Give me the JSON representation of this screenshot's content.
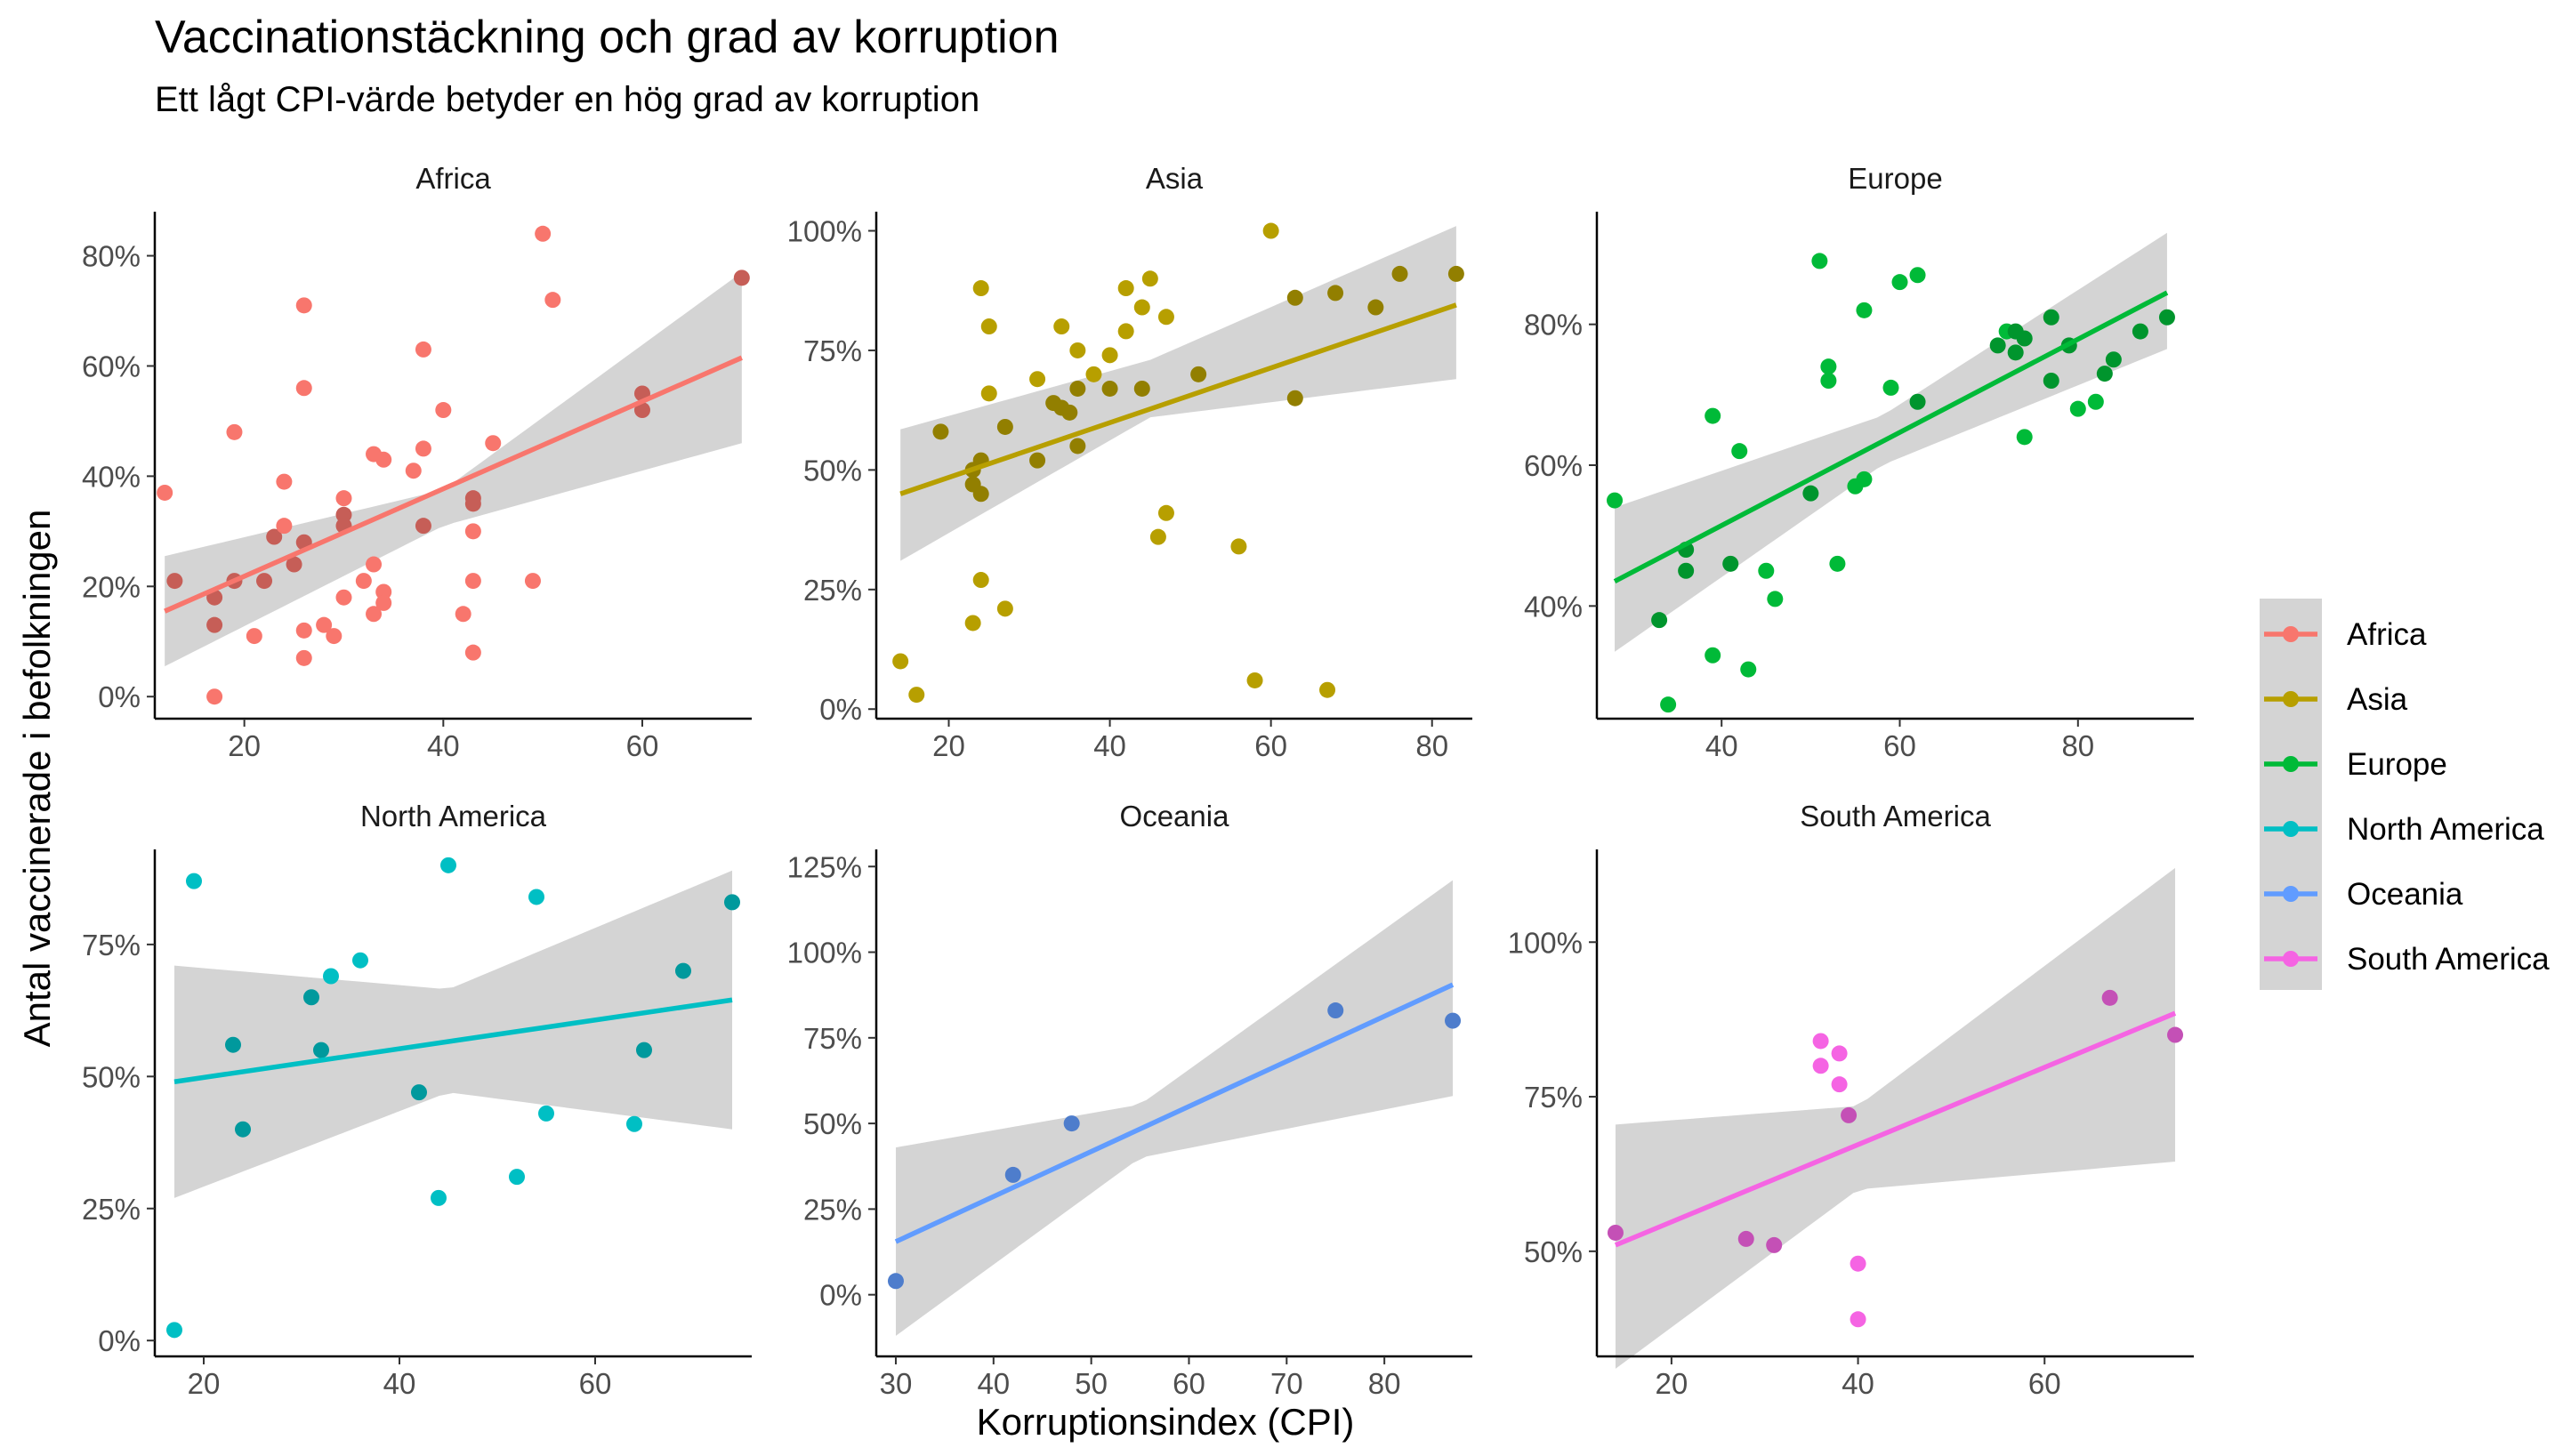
{
  "title": "Vaccinationstäckning och grad av korruption",
  "subtitle": "Ett lågt CPI-värde betyder en hög grad av korruption",
  "chart_data": {
    "type": "scatter",
    "xlabel": "Korruptionsindex (CPI)",
    "ylabel": "Antal vaccinerade i befolkningen",
    "legend_position": "right",
    "grid": false,
    "smoothing": "linear regression with grey confidence band",
    "legend": [
      {
        "name": "Africa",
        "color": "#F8766D"
      },
      {
        "name": "Asia",
        "color": "#B79F00"
      },
      {
        "name": "Europe",
        "color": "#00BA38"
      },
      {
        "name": "North America",
        "color": "#00BFC4"
      },
      {
        "name": "Oceania",
        "color": "#619CFF"
      },
      {
        "name": "South America",
        "color": "#F564E3"
      }
    ],
    "panels": [
      {
        "name": "Africa",
        "color": "#F8766D",
        "xlim": [
          11,
          71
        ],
        "ylim": [
          -0.04,
          0.88
        ],
        "xticks": [
          20,
          40,
          60
        ],
        "yticks": [
          0,
          0.2,
          0.4,
          0.6,
          0.8
        ],
        "ytick_labels": [
          "0%",
          "20%",
          "40%",
          "60%",
          "80%"
        ],
        "fit": {
          "x": [
            12,
            70
          ],
          "y": [
            0.155,
            0.615
          ]
        },
        "band": {
          "x": [
            12,
            40,
            70
          ],
          "lower": [
            0.055,
            0.31,
            0.46
          ],
          "upper": [
            0.255,
            0.375,
            0.77
          ]
        },
        "points": [
          [
            12,
            0.37
          ],
          [
            13,
            0.21
          ],
          [
            17,
            0.18
          ],
          [
            17,
            0.13
          ],
          [
            17,
            0.0
          ],
          [
            19,
            0.48
          ],
          [
            19,
            0.21
          ],
          [
            21,
            0.11
          ],
          [
            22,
            0.21
          ],
          [
            23,
            0.29
          ],
          [
            24,
            0.39
          ],
          [
            24,
            0.31
          ],
          [
            25,
            0.24
          ],
          [
            26,
            0.71
          ],
          [
            26,
            0.56
          ],
          [
            26,
            0.28
          ],
          [
            26,
            0.12
          ],
          [
            26,
            0.07
          ],
          [
            28,
            0.13
          ],
          [
            29,
            0.11
          ],
          [
            30,
            0.36
          ],
          [
            30,
            0.33
          ],
          [
            30,
            0.31
          ],
          [
            30,
            0.18
          ],
          [
            32,
            0.21
          ],
          [
            33,
            0.44
          ],
          [
            33,
            0.24
          ],
          [
            33,
            0.15
          ],
          [
            34,
            0.43
          ],
          [
            34,
            0.19
          ],
          [
            34,
            0.17
          ],
          [
            37,
            0.41
          ],
          [
            38,
            0.63
          ],
          [
            38,
            0.45
          ],
          [
            38,
            0.31
          ],
          [
            40,
            0.52
          ],
          [
            42,
            0.15
          ],
          [
            43,
            0.36
          ],
          [
            43,
            0.35
          ],
          [
            43,
            0.3
          ],
          [
            43,
            0.21
          ],
          [
            43,
            0.08
          ],
          [
            45,
            0.46
          ],
          [
            49,
            0.21
          ],
          [
            50,
            0.84
          ],
          [
            51,
            0.72
          ],
          [
            60,
            0.55
          ],
          [
            60,
            0.52
          ],
          [
            70,
            0.76
          ]
        ]
      },
      {
        "name": "Asia",
        "color": "#B79F00",
        "xlim": [
          11,
          85
        ],
        "ylim": [
          -0.02,
          1.04
        ],
        "xticks": [
          20,
          40,
          60,
          80
        ],
        "yticks": [
          0,
          0.25,
          0.5,
          0.75,
          1.0
        ],
        "ytick_labels": [
          "0%",
          "25%",
          "50%",
          "75%",
          "100%"
        ],
        "fit": {
          "x": [
            14,
            83
          ],
          "y": [
            0.45,
            0.845
          ]
        },
        "band": {
          "x": [
            14,
            45,
            83
          ],
          "lower": [
            0.31,
            0.61,
            0.69
          ],
          "upper": [
            0.585,
            0.73,
            1.01
          ]
        },
        "points": [
          [
            14,
            0.1
          ],
          [
            16,
            0.03
          ],
          [
            19,
            0.58
          ],
          [
            23,
            0.5
          ],
          [
            23,
            0.47
          ],
          [
            23,
            0.18
          ],
          [
            24,
            0.88
          ],
          [
            24,
            0.52
          ],
          [
            24,
            0.45
          ],
          [
            24,
            0.27
          ],
          [
            25,
            0.8
          ],
          [
            25,
            0.66
          ],
          [
            27,
            0.59
          ],
          [
            27,
            0.21
          ],
          [
            31,
            0.69
          ],
          [
            31,
            0.52
          ],
          [
            33,
            0.64
          ],
          [
            34,
            0.8
          ],
          [
            34,
            0.63
          ],
          [
            35,
            0.62
          ],
          [
            36,
            0.75
          ],
          [
            36,
            0.67
          ],
          [
            36,
            0.55
          ],
          [
            38,
            0.7
          ],
          [
            40,
            0.74
          ],
          [
            40,
            0.67
          ],
          [
            42,
            0.88
          ],
          [
            42,
            0.79
          ],
          [
            44,
            0.84
          ],
          [
            44,
            0.67
          ],
          [
            45,
            0.9
          ],
          [
            46,
            0.36
          ],
          [
            47,
            0.82
          ],
          [
            47,
            0.41
          ],
          [
            51,
            0.7
          ],
          [
            56,
            0.34
          ],
          [
            58,
            0.06
          ],
          [
            60,
            1.0
          ],
          [
            63,
            0.86
          ],
          [
            63,
            0.65
          ],
          [
            67,
            0.04
          ],
          [
            68,
            0.87
          ],
          [
            73,
            0.84
          ],
          [
            76,
            0.91
          ],
          [
            83,
            0.91
          ]
        ]
      },
      {
        "name": "Europe",
        "color": "#00BA38",
        "xlim": [
          26,
          93
        ],
        "ylim": [
          0.24,
          0.96
        ],
        "xticks": [
          40,
          60,
          80
        ],
        "yticks": [
          0.4,
          0.6,
          0.8
        ],
        "ytick_labels": [
          "40%",
          "60%",
          "80%"
        ],
        "fit": {
          "x": [
            28,
            90
          ],
          "y": [
            0.435,
            0.845
          ]
        },
        "band": {
          "x": [
            28,
            58,
            90
          ],
          "lower": [
            0.335,
            0.6,
            0.765
          ],
          "upper": [
            0.54,
            0.67,
            0.93
          ]
        },
        "points": [
          [
            28,
            0.55
          ],
          [
            33,
            0.38
          ],
          [
            34,
            0.26
          ],
          [
            36,
            0.48
          ],
          [
            36,
            0.45
          ],
          [
            39,
            0.67
          ],
          [
            39,
            0.33
          ],
          [
            41,
            0.46
          ],
          [
            42,
            0.62
          ],
          [
            43,
            0.31
          ],
          [
            45,
            0.45
          ],
          [
            46,
            0.41
          ],
          [
            50,
            0.56
          ],
          [
            51,
            0.89
          ],
          [
            52,
            0.74
          ],
          [
            52,
            0.72
          ],
          [
            53,
            0.46
          ],
          [
            55,
            0.57
          ],
          [
            56,
            0.82
          ],
          [
            56,
            0.58
          ],
          [
            59,
            0.71
          ],
          [
            60,
            0.86
          ],
          [
            62,
            0.87
          ],
          [
            62,
            0.69
          ],
          [
            71,
            0.77
          ],
          [
            72,
            0.79
          ],
          [
            73,
            0.79
          ],
          [
            73,
            0.76
          ],
          [
            74,
            0.78
          ],
          [
            74,
            0.64
          ],
          [
            77,
            0.81
          ],
          [
            77,
            0.72
          ],
          [
            79,
            0.77
          ],
          [
            80,
            0.68
          ],
          [
            82,
            0.69
          ],
          [
            83,
            0.73
          ],
          [
            84,
            0.75
          ],
          [
            87,
            0.79
          ],
          [
            90,
            0.81
          ]
        ]
      },
      {
        "name": "North America",
        "color": "#00BFC4",
        "xlim": [
          15,
          76
        ],
        "ylim": [
          -0.03,
          0.93
        ],
        "xticks": [
          20,
          40,
          60
        ],
        "yticks": [
          0,
          0.25,
          0.5,
          0.75
        ],
        "ytick_labels": [
          "0%",
          "25%",
          "50%",
          "75%"
        ],
        "fit": {
          "x": [
            17,
            74
          ],
          "y": [
            0.49,
            0.645
          ]
        },
        "band": {
          "x": [
            17,
            45,
            74
          ],
          "lower": [
            0.27,
            0.47,
            0.4
          ],
          "upper": [
            0.71,
            0.665,
            0.89
          ]
        },
        "points": [
          [
            17,
            0.02
          ],
          [
            19,
            0.87
          ],
          [
            23,
            0.56
          ],
          [
            24,
            0.4
          ],
          [
            31,
            0.65
          ],
          [
            32,
            0.55
          ],
          [
            33,
            0.69
          ],
          [
            36,
            0.72
          ],
          [
            42,
            0.47
          ],
          [
            44,
            0.27
          ],
          [
            45,
            0.9
          ],
          [
            52,
            0.31
          ],
          [
            54,
            0.84
          ],
          [
            55,
            0.43
          ],
          [
            64,
            0.41
          ],
          [
            65,
            0.55
          ],
          [
            69,
            0.7
          ],
          [
            74,
            0.83
          ]
        ]
      },
      {
        "name": "Oceania",
        "color": "#619CFF",
        "xlim": [
          28,
          89
        ],
        "ylim": [
          -0.18,
          1.3
        ],
        "xticks": [
          30,
          40,
          50,
          60,
          70,
          80
        ],
        "yticks": [
          0,
          0.25,
          0.5,
          0.75,
          1.0,
          1.25
        ],
        "ytick_labels": [
          "0%",
          "25%",
          "50%",
          "75%",
          "100%",
          "125%"
        ],
        "fit": {
          "x": [
            30,
            87
          ],
          "y": [
            0.155,
            0.905
          ]
        },
        "band": {
          "x": [
            30,
            55,
            87
          ],
          "lower": [
            -0.12,
            0.4,
            0.58
          ],
          "upper": [
            0.43,
            0.555,
            1.21
          ]
        },
        "points": [
          [
            30,
            0.04
          ],
          [
            42,
            0.35
          ],
          [
            48,
            0.5
          ],
          [
            75,
            0.83
          ],
          [
            87,
            0.8
          ]
        ]
      },
      {
        "name": "South America",
        "color": "#F564E3",
        "xlim": [
          12,
          76
        ],
        "ylim": [
          0.33,
          1.15
        ],
        "xticks": [
          20,
          40,
          60
        ],
        "yticks": [
          0.5,
          0.75,
          1.0
        ],
        "ytick_labels": [
          "50%",
          "75%",
          "100%"
        ],
        "fit": {
          "x": [
            14,
            74
          ],
          "y": [
            0.51,
            0.885
          ]
        },
        "band": {
          "x": [
            14,
            40,
            74
          ],
          "lower": [
            0.31,
            0.6,
            0.645
          ],
          "upper": [
            0.705,
            0.735,
            1.12
          ]
        },
        "points": [
          [
            14,
            0.53
          ],
          [
            28,
            0.52
          ],
          [
            31,
            0.51
          ],
          [
            36,
            0.84
          ],
          [
            36,
            0.8
          ],
          [
            38,
            0.82
          ],
          [
            38,
            0.77
          ],
          [
            39,
            0.72
          ],
          [
            40,
            0.48
          ],
          [
            40,
            0.39
          ],
          [
            67,
            0.91
          ],
          [
            74,
            0.85
          ]
        ]
      }
    ]
  }
}
